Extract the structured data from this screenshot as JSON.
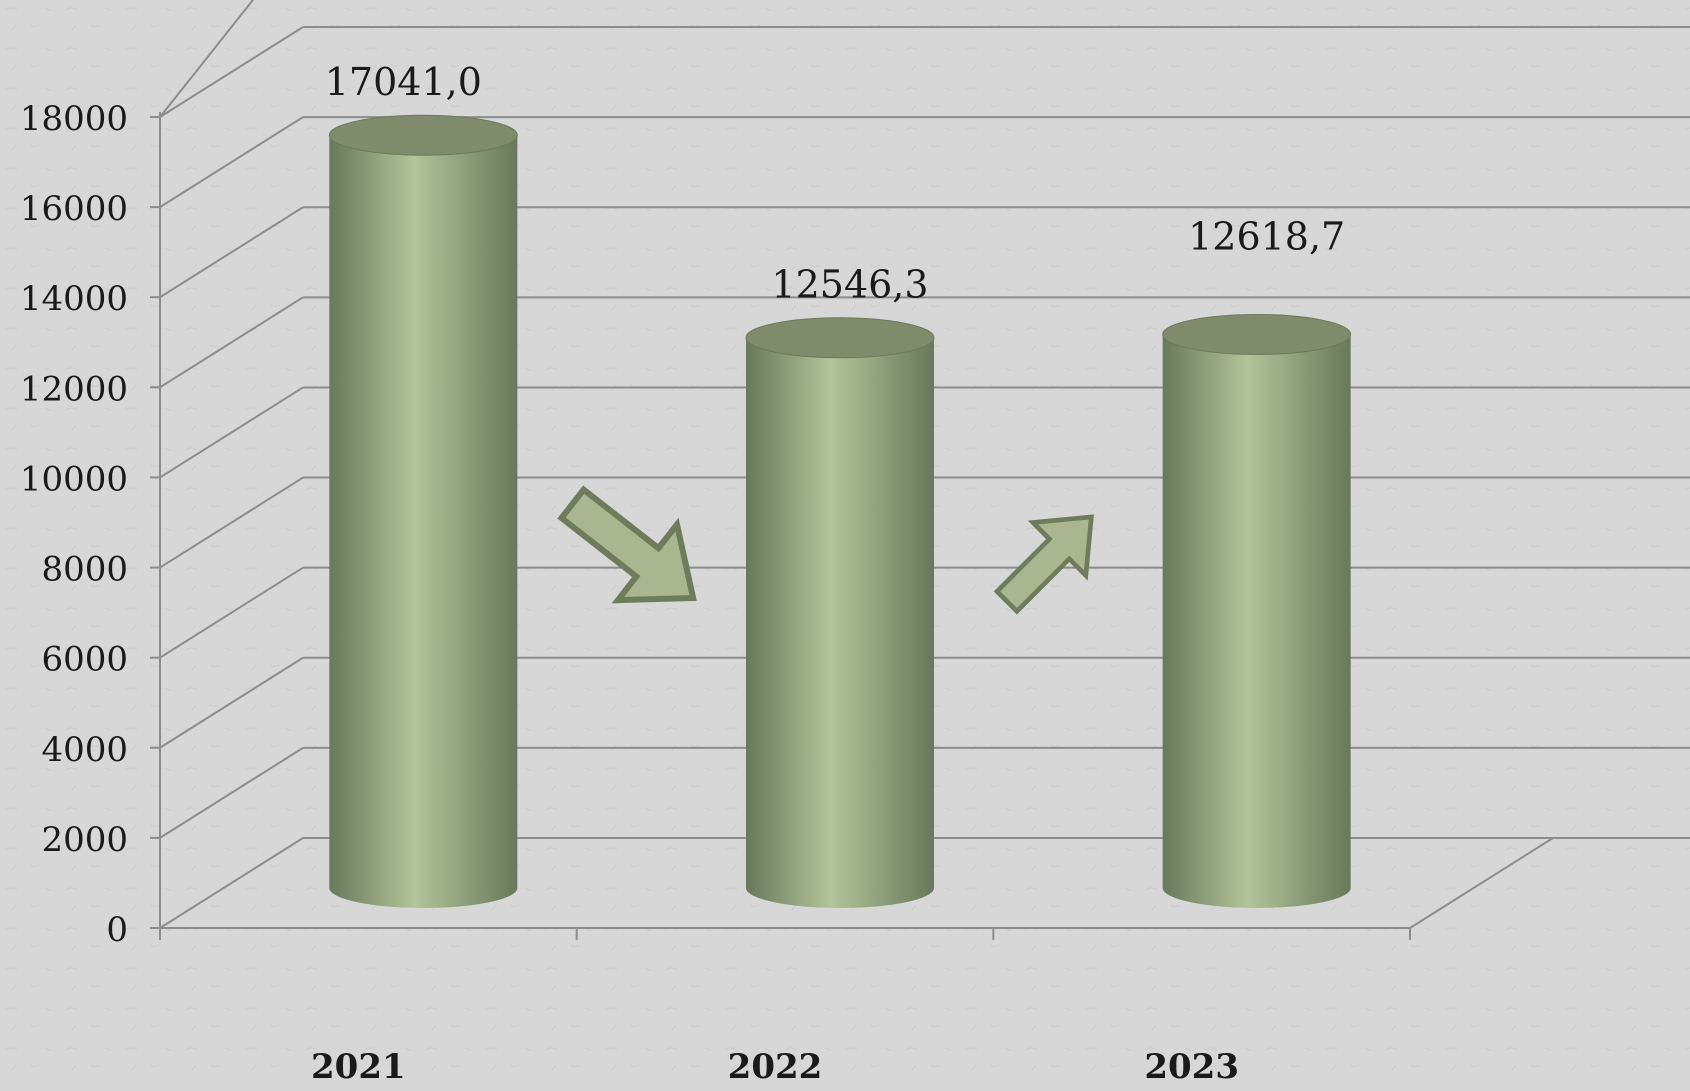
{
  "chart_data": {
    "type": "bar",
    "style": "3d-cylinder",
    "title": "",
    "xlabel": "",
    "ylabel": "",
    "categories": [
      "2021",
      "2022",
      "2023"
    ],
    "values": [
      17041.0,
      12546.3,
      12618.7
    ],
    "data_labels": [
      "17041,0",
      "12546,3",
      "12618,7"
    ],
    "ylim": [
      0,
      18000
    ],
    "yticks": [
      0,
      2000,
      4000,
      6000,
      8000,
      10000,
      12000,
      14000,
      16000,
      18000
    ],
    "ytick_labels": [
      "0",
      "2000",
      "4000",
      "6000",
      "8000",
      "10000",
      "12000",
      "14000",
      "16000",
      "18000"
    ],
    "grid": true,
    "legend": "none",
    "trend_arrows": [
      "down",
      "up"
    ],
    "colors": {
      "bar_light": "#b3c49b",
      "bar_dark": "#68785a",
      "bar_top": "#7f8b6a",
      "arrow_fill": "#a9b68f",
      "arrow_stroke": "#6f7c5c",
      "grid": "#8c8c8c",
      "background": "#d7d7d7",
      "text": "#1a1a1a"
    }
  }
}
